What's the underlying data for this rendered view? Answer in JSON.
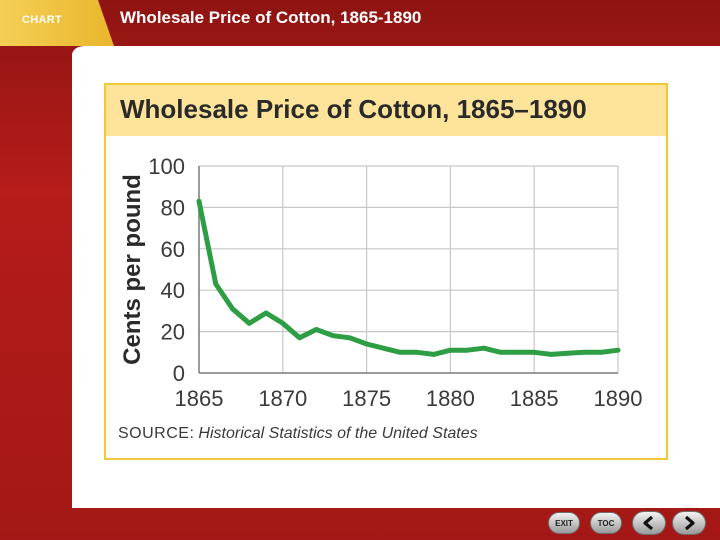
{
  "header": {
    "tag": "CHART",
    "title": "Wholesale Price of Cotton, 1865-1890"
  },
  "chart_heading": "Wholesale Price of Cotton, 1865–1890",
  "source": {
    "label": "SOURCE:",
    "text": "Historical Statistics of the United States"
  },
  "nav": {
    "exit_label": "EXIT",
    "toc_label": "TOC"
  },
  "colors": {
    "header_red": "#b01a18",
    "accent_gold": "#f2c83a",
    "banner_yellow": "#fde49a",
    "line_green": "#2e9e44",
    "grid": "#c8c8c8"
  },
  "chart_data": {
    "type": "line",
    "title": "Wholesale Price of Cotton, 1865–1890",
    "xlabel": "",
    "ylabel": "Cents per pound",
    "xlim": [
      1865,
      1890
    ],
    "ylim": [
      0,
      100
    ],
    "xticks": [
      1865,
      1870,
      1875,
      1880,
      1885,
      1890
    ],
    "yticks": [
      0,
      20,
      40,
      60,
      80,
      100
    ],
    "grid": true,
    "series": [
      {
        "color": "#2e9e44",
        "points": [
          [
            1865,
            83
          ],
          [
            1866,
            43
          ],
          [
            1867,
            31
          ],
          [
            1868,
            24
          ],
          [
            1869,
            29
          ],
          [
            1870,
            24
          ],
          [
            1871,
            17
          ],
          [
            1872,
            21
          ],
          [
            1873,
            18
          ],
          [
            1874,
            17
          ],
          [
            1875,
            14
          ],
          [
            1876,
            12
          ],
          [
            1877,
            10
          ],
          [
            1878,
            10
          ],
          [
            1879,
            9
          ],
          [
            1880,
            11
          ],
          [
            1881,
            11
          ],
          [
            1882,
            12
          ],
          [
            1883,
            10
          ],
          [
            1884,
            10
          ],
          [
            1885,
            10
          ],
          [
            1886,
            9
          ],
          [
            1887,
            9.5
          ],
          [
            1888,
            10
          ],
          [
            1889,
            10
          ],
          [
            1890,
            11
          ]
        ]
      }
    ]
  }
}
